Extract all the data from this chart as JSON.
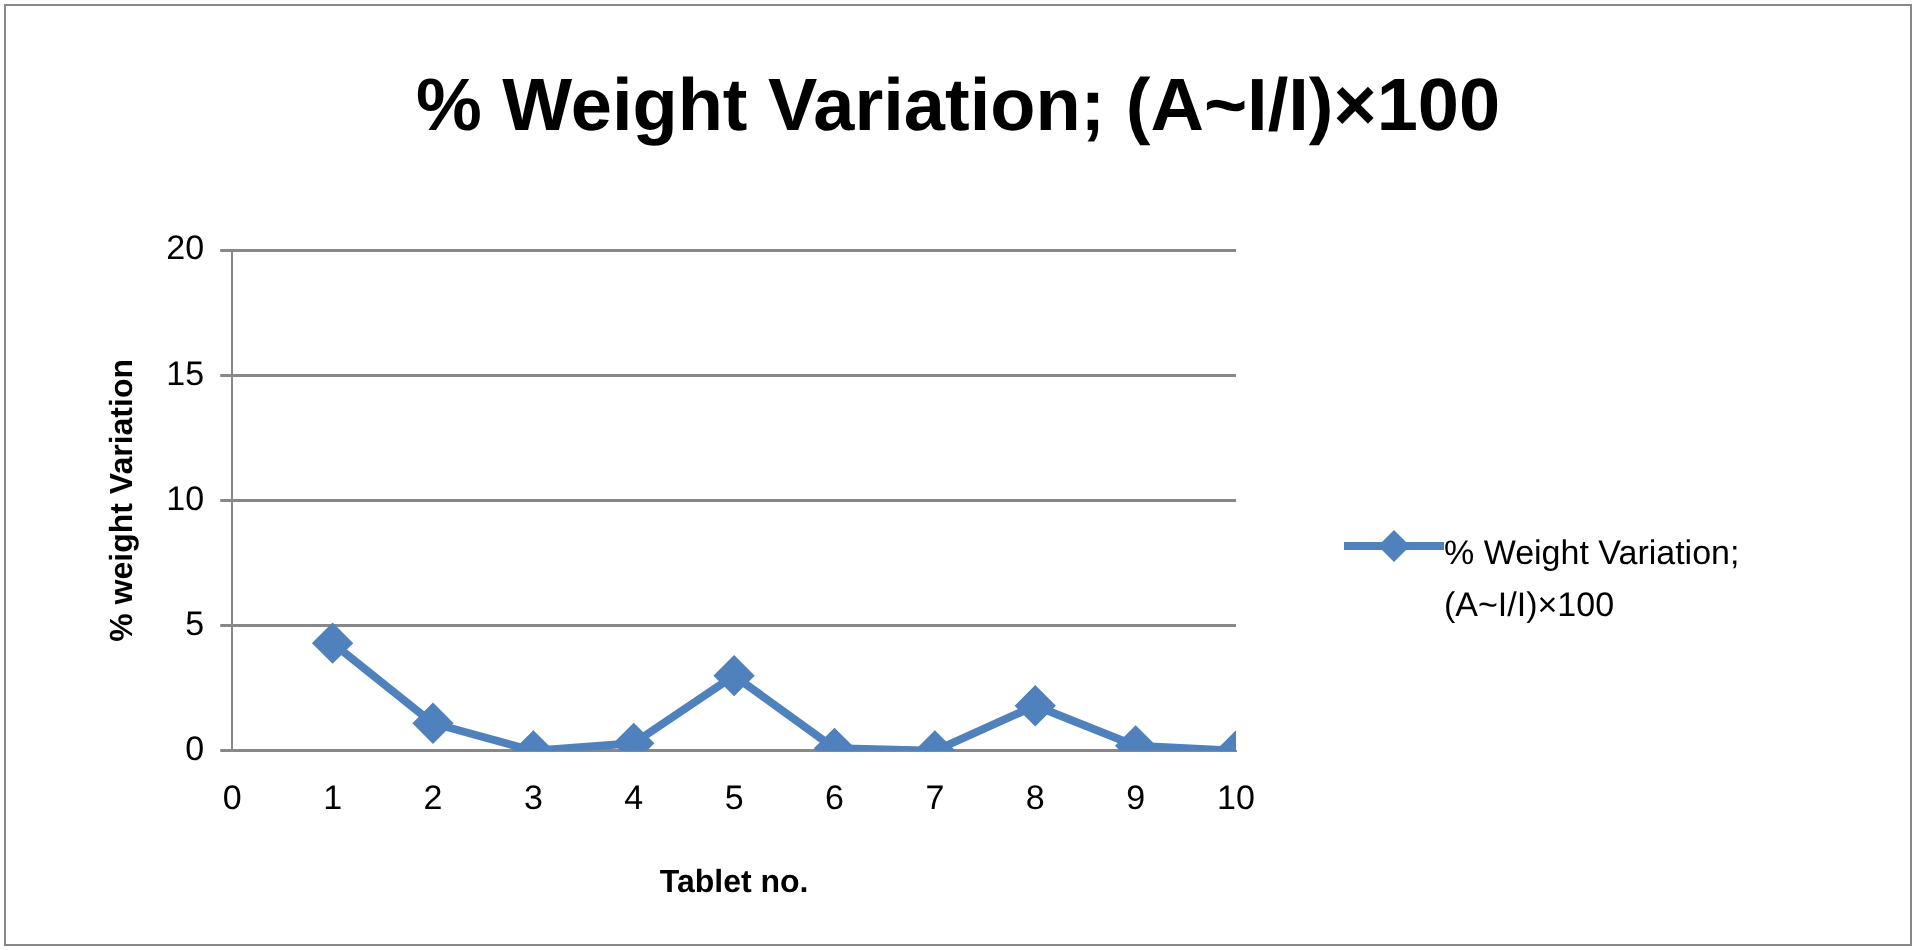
{
  "chart_data": {
    "type": "line",
    "title": "% Weight Variation; (A~I/I)×100",
    "xlabel": "Tablet no.",
    "ylabel": "% weight Variation",
    "x": [
      1,
      2,
      3,
      4,
      5,
      6,
      7,
      8,
      9,
      10
    ],
    "series": [
      {
        "name": "% Weight Variation; (A~I/I)×100",
        "color": "#4f81bd",
        "values": [
          4.3,
          1.1,
          0,
          0.3,
          3.0,
          0.1,
          0,
          1.8,
          0.2,
          0
        ]
      }
    ],
    "xlim": [
      0,
      10
    ],
    "xticks": [
      0,
      1,
      2,
      3,
      4,
      5,
      6,
      7,
      8,
      9,
      10
    ],
    "ylim": [
      0,
      20
    ],
    "yticks": [
      0,
      5,
      10,
      15,
      20
    ],
    "grid": "y",
    "legend": "right",
    "marker": "diamond",
    "line_style": "solid"
  }
}
